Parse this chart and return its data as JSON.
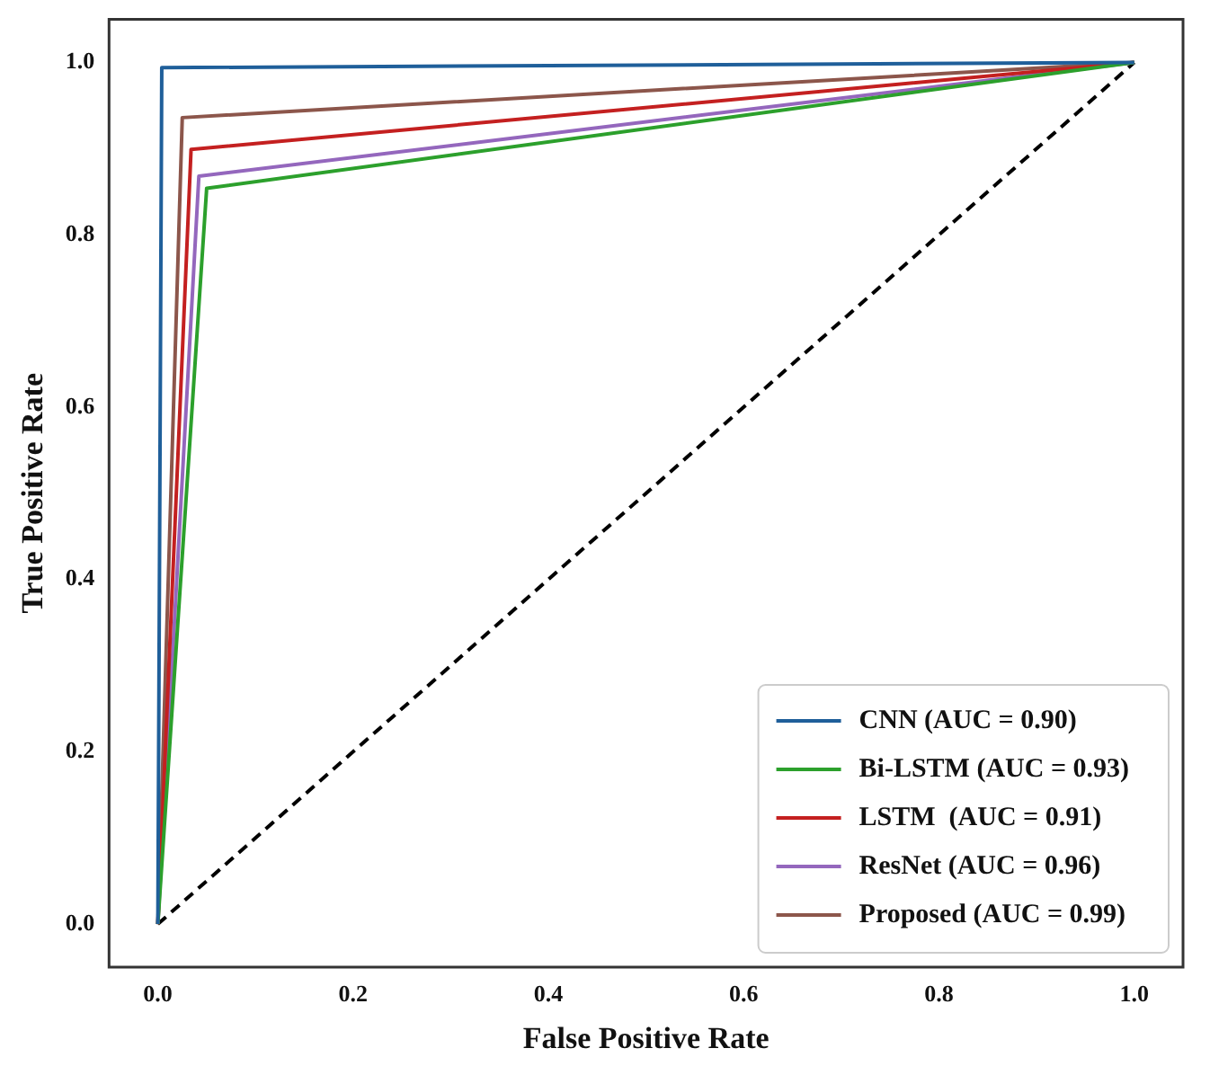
{
  "chart_data": {
    "type": "line",
    "xlabel": "False Positive Rate",
    "ylabel": "True Positive Rate",
    "xlim": [
      -0.05,
      1.05
    ],
    "ylim": [
      -0.05,
      1.05
    ],
    "xticks": [
      {
        "value": 0,
        "label": "0.0"
      },
      0.2,
      0.4,
      0.6,
      0.8,
      {
        "value": 1,
        "label": "1.0"
      }
    ],
    "yticks": [
      {
        "value": 0,
        "label": "0.0"
      },
      0.2,
      0.4,
      0.6,
      0.8,
      {
        "value": 1,
        "label": "1.0"
      }
    ],
    "grid": false,
    "legend": "bottom right",
    "marker": "none",
    "series": [
      {
        "name": "CNN (AUC = 0.90)",
        "color": "#1f5f9a",
        "x": [
          0,
          0.004,
          1
        ],
        "values": [
          0,
          0.994,
          1
        ]
      },
      {
        "name": "Bi-LSTM (AUC = 0.93)",
        "color": "#2ca02c",
        "x": [
          0,
          0.05,
          1
        ],
        "values": [
          0,
          0.854,
          1
        ]
      },
      {
        "name": "LSTM  (AUC = 0.91)",
        "color": "#c42020",
        "x": [
          0,
          0.034,
          1
        ],
        "values": [
          0,
          0.899,
          1
        ]
      },
      {
        "name": "ResNet (AUC = 0.96)",
        "color": "#9467bd",
        "x": [
          0,
          0.042,
          1
        ],
        "values": [
          0,
          0.868,
          1
        ]
      },
      {
        "name": "Proposed (AUC = 0.99)",
        "color": "#8c564b",
        "x": [
          0,
          0.025,
          1
        ],
        "values": [
          0,
          0.936,
          1
        ]
      },
      {
        "color": "#000000",
        "line_style": "dashed",
        "x": [
          0,
          1
        ],
        "values": [
          0,
          1
        ]
      }
    ]
  }
}
